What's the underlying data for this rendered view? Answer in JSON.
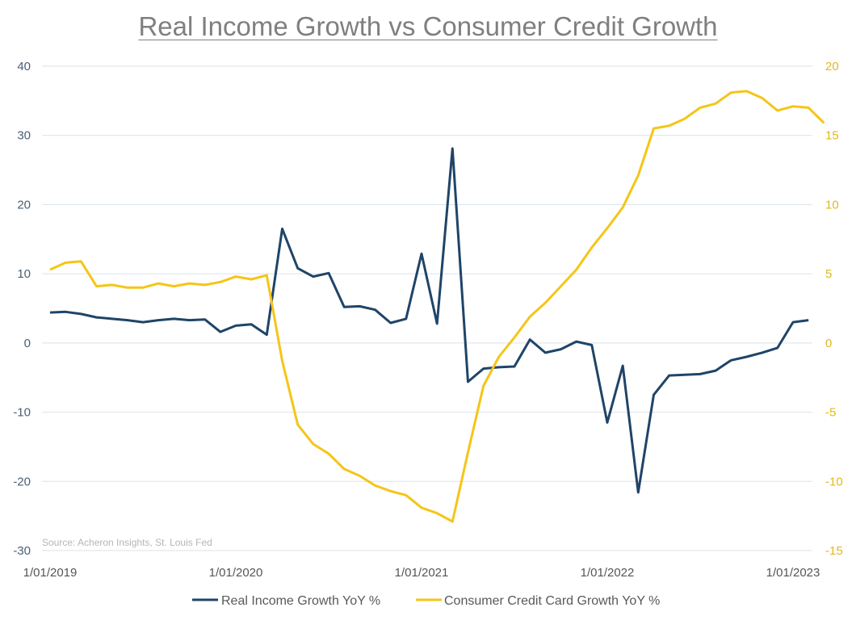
{
  "chart_data": {
    "type": "line",
    "title": "Real Income Growth vs Consumer Credit Growth",
    "source": "Source: Acheron Insights, St. Louis Fed",
    "x_start": "2019-01",
    "x_ticks": [
      {
        "label": "1/01/2019",
        "index": 0
      },
      {
        "label": "1/01/2020",
        "index": 12
      },
      {
        "label": "1/01/2021",
        "index": 24
      },
      {
        "label": "1/01/2022",
        "index": 36
      },
      {
        "label": "1/01/2023",
        "index": 48
      }
    ],
    "y_left": {
      "min": -30,
      "max": 40,
      "ticks": [
        40,
        30,
        20,
        10,
        0,
        -10,
        -20,
        -30
      ]
    },
    "y_right": {
      "min": -15,
      "max": 20,
      "ticks": [
        20,
        15,
        10,
        5,
        0,
        -5,
        -10,
        -15
      ]
    },
    "grid": true,
    "legend_position": "bottom",
    "series": [
      {
        "name": "Real Income Growth YoY %",
        "axis": "left",
        "color": "#1f4468",
        "values": [
          4.4,
          4.5,
          4.2,
          3.7,
          3.5,
          3.3,
          3.0,
          3.3,
          3.5,
          3.3,
          3.4,
          1.6,
          2.5,
          2.7,
          1.2,
          16.5,
          10.8,
          9.6,
          10.1,
          5.2,
          5.3,
          4.8,
          2.9,
          3.5,
          12.9,
          2.8,
          28.1,
          -5.6,
          -3.7,
          -3.5,
          -3.4,
          0.5,
          -1.4,
          -0.9,
          0.2,
          -0.3,
          -11.5,
          -3.3,
          -21.6,
          -7.5,
          -4.7,
          -4.6,
          -4.5,
          -4.0,
          -2.5,
          -2.0,
          -1.4,
          -0.7,
          3.0,
          3.3
        ]
      },
      {
        "name": "Consumer Credit Card Growth YoY %",
        "axis": "right",
        "color": "#f5c518",
        "values": [
          5.3,
          5.8,
          5.9,
          4.1,
          4.2,
          4.0,
          4.0,
          4.3,
          4.1,
          4.3,
          4.2,
          4.4,
          4.8,
          4.6,
          4.9,
          -1.3,
          -5.9,
          -7.3,
          -8.0,
          -9.1,
          -9.6,
          -10.3,
          -10.7,
          -11.0,
          -11.9,
          -12.3,
          -12.9,
          -7.9,
          -3.1,
          -1.0,
          0.4,
          1.9,
          2.9,
          4.1,
          5.3,
          6.9,
          8.3,
          9.8,
          12.1,
          15.5,
          15.7,
          16.2,
          17.0,
          17.3,
          18.1,
          18.2,
          17.7,
          16.8,
          17.1,
          17.0,
          15.9
        ]
      }
    ]
  }
}
